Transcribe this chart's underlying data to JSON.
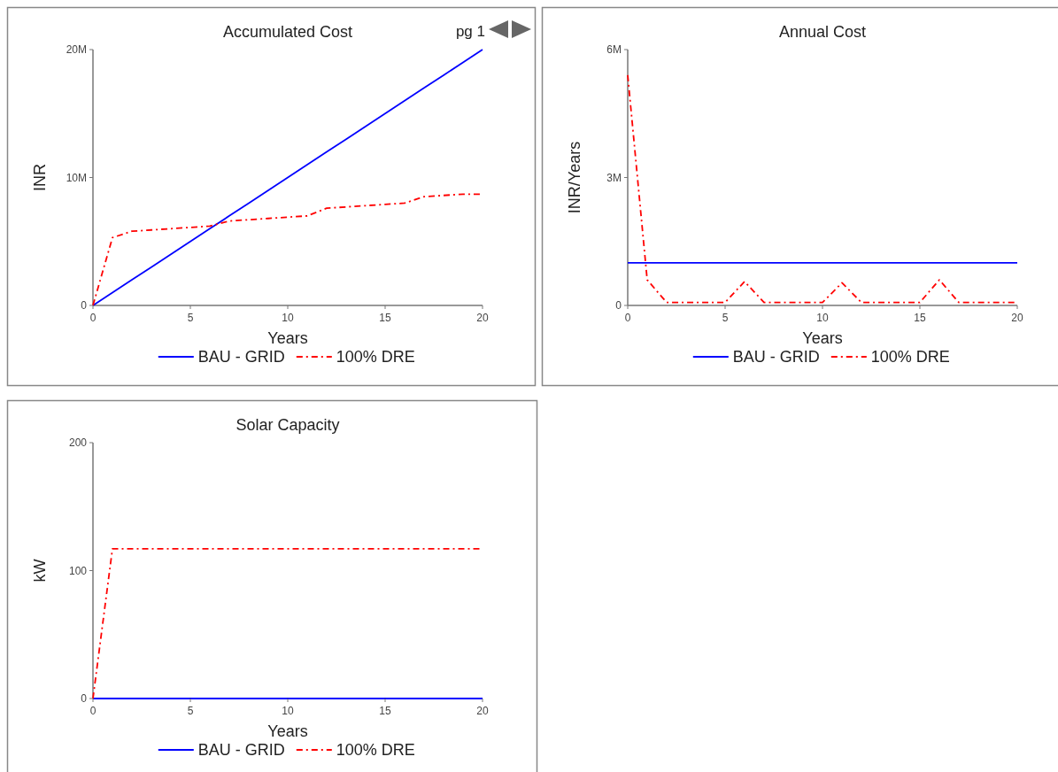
{
  "chart_data": [
    {
      "type": "line",
      "title": "Accumulated Cost",
      "xlabel": "Years",
      "ylabel": "INR",
      "annotations": [
        "pg 1"
      ],
      "x": [
        0,
        1,
        2,
        3,
        4,
        5,
        6,
        7,
        8,
        9,
        10,
        11,
        12,
        13,
        14,
        15,
        16,
        17,
        18,
        19,
        20
      ],
      "xlim": [
        0,
        20
      ],
      "xticks": [
        0,
        5,
        10,
        15,
        20
      ],
      "ylim": [
        0,
        20000000
      ],
      "yticks": [
        {
          "value": 0,
          "label": "0"
        },
        {
          "value": 10000000,
          "label": "10M"
        },
        {
          "value": 20000000,
          "label": "20M"
        }
      ],
      "grid": false,
      "legend": "bottom",
      "marker": "none",
      "series": [
        {
          "name": "BAU - GRID",
          "color": "#0000ff",
          "line_style": "solid",
          "values": [
            0,
            1000000,
            2000000,
            3000000,
            4000000,
            5000000,
            6000000,
            7000000,
            8000000,
            9000000,
            10000000,
            11000000,
            12000000,
            13000000,
            14000000,
            15000000,
            16000000,
            17000000,
            18000000,
            19000000,
            20000000
          ]
        },
        {
          "name": "100% DRE",
          "color": "#ff0000",
          "line_style": "dashed",
          "values": [
            0,
            5300000,
            5800000,
            5900000,
            6000000,
            6100000,
            6200000,
            6600000,
            6700000,
            6800000,
            6900000,
            7000000,
            7600000,
            7700000,
            7800000,
            7900000,
            8000000,
            8500000,
            8600000,
            8700000,
            8700000
          ]
        }
      ]
    },
    {
      "type": "line",
      "title": "Annual Cost",
      "xlabel": "Years",
      "ylabel": "INR/Years",
      "x": [
        0,
        1,
        2,
        3,
        4,
        5,
        6,
        7,
        8,
        9,
        10,
        11,
        12,
        13,
        14,
        15,
        16,
        17,
        18,
        19,
        20
      ],
      "xlim": [
        0,
        20
      ],
      "xticks": [
        0,
        5,
        10,
        15,
        20
      ],
      "ylim": [
        0,
        6000000
      ],
      "yticks": [
        {
          "value": 0,
          "label": "0"
        },
        {
          "value": 3000000,
          "label": "3M"
        },
        {
          "value": 6000000,
          "label": "6M"
        }
      ],
      "grid": false,
      "legend": "bottom",
      "marker": "none",
      "series": [
        {
          "name": "BAU - GRID",
          "color": "#0000ff",
          "line_style": "solid",
          "values": [
            1000000,
            1000000,
            1000000,
            1000000,
            1000000,
            1000000,
            1000000,
            1000000,
            1000000,
            1000000,
            1000000,
            1000000,
            1000000,
            1000000,
            1000000,
            1000000,
            1000000,
            1000000,
            1000000,
            1000000,
            1000000
          ]
        },
        {
          "name": "100% DRE",
          "color": "#ff0000",
          "line_style": "dashed",
          "values": [
            5400000,
            600000,
            70000,
            70000,
            70000,
            70000,
            560000,
            70000,
            70000,
            70000,
            70000,
            530000,
            70000,
            70000,
            70000,
            70000,
            600000,
            70000,
            70000,
            70000,
            70000
          ]
        }
      ]
    },
    {
      "type": "line",
      "title": "Solar Capacity",
      "xlabel": "Years",
      "ylabel": "kW",
      "x": [
        0,
        1,
        2,
        3,
        4,
        5,
        6,
        7,
        8,
        9,
        10,
        11,
        12,
        13,
        14,
        15,
        16,
        17,
        18,
        19,
        20
      ],
      "xlim": [
        0,
        20
      ],
      "xticks": [
        0,
        5,
        10,
        15,
        20
      ],
      "ylim": [
        0,
        200
      ],
      "yticks": [
        0,
        100,
        200
      ],
      "grid": false,
      "legend": "bottom",
      "marker": "none",
      "series": [
        {
          "name": "BAU - GRID",
          "color": "#0000ff",
          "line_style": "solid",
          "values": [
            0,
            0,
            0,
            0,
            0,
            0,
            0,
            0,
            0,
            0,
            0,
            0,
            0,
            0,
            0,
            0,
            0,
            0,
            0,
            0,
            0
          ]
        },
        {
          "name": "100% DRE",
          "color": "#ff0000",
          "line_style": "dashed",
          "values": [
            0,
            117,
            117,
            117,
            117,
            117,
            117,
            117,
            117,
            117,
            117,
            117,
            117,
            117,
            117,
            117,
            117,
            117,
            117,
            117,
            117
          ]
        }
      ]
    }
  ]
}
